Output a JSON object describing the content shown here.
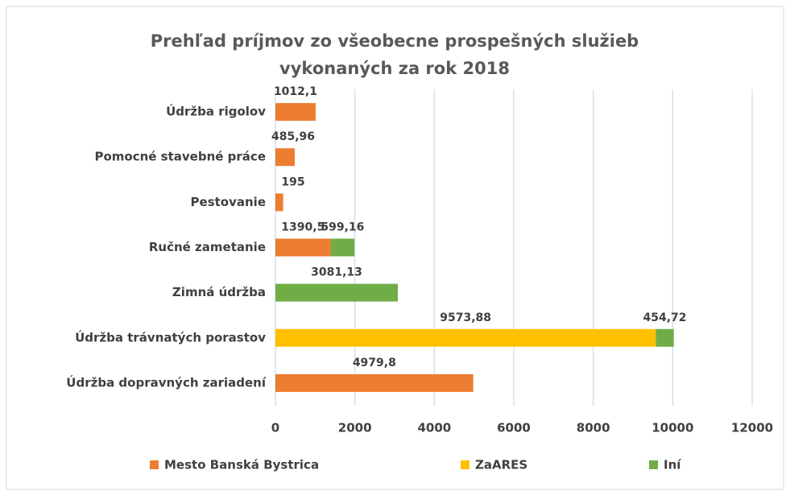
{
  "chart_data": {
    "type": "stacked_barh",
    "title": [
      "Prehľad príjmov zo všeobecne prospešných služieb",
      "vykonaných za rok 2018"
    ],
    "categories": [
      "Údržba rigolov",
      "Pomocné stavebné práce",
      "Pestovanie",
      "Ručné zametanie",
      "Zimná údržba",
      "Údržba trávnatých porastov",
      "Údržba dopravných zariadení"
    ],
    "series": [
      {
        "name": "Mesto Banská Bystrica",
        "color": "#ed7d31",
        "values": [
          1012.1,
          485.96,
          195,
          1390.5,
          null,
          null,
          4979.8
        ],
        "value_labels": [
          "1012,1",
          "485,96",
          "195",
          "1390,5",
          null,
          null,
          "4979,8"
        ]
      },
      {
        "name": "ZaARES",
        "color": "#ffc000",
        "values": [
          null,
          null,
          null,
          null,
          null,
          9573.88,
          null
        ],
        "value_labels": [
          null,
          null,
          null,
          null,
          null,
          "9573,88",
          null
        ]
      },
      {
        "name": "Iní",
        "color": "#70ad47",
        "values": [
          null,
          null,
          null,
          599.16,
          3081.13,
          454.72,
          null
        ],
        "value_labels": [
          null,
          null,
          null,
          "599,16",
          "3081,13",
          "454,72",
          null
        ]
      }
    ],
    "xlim": [
      0,
      12000
    ],
    "xticks": [
      0,
      2000,
      4000,
      6000,
      8000,
      10000,
      12000
    ],
    "grid": true,
    "legend": "bottom"
  }
}
